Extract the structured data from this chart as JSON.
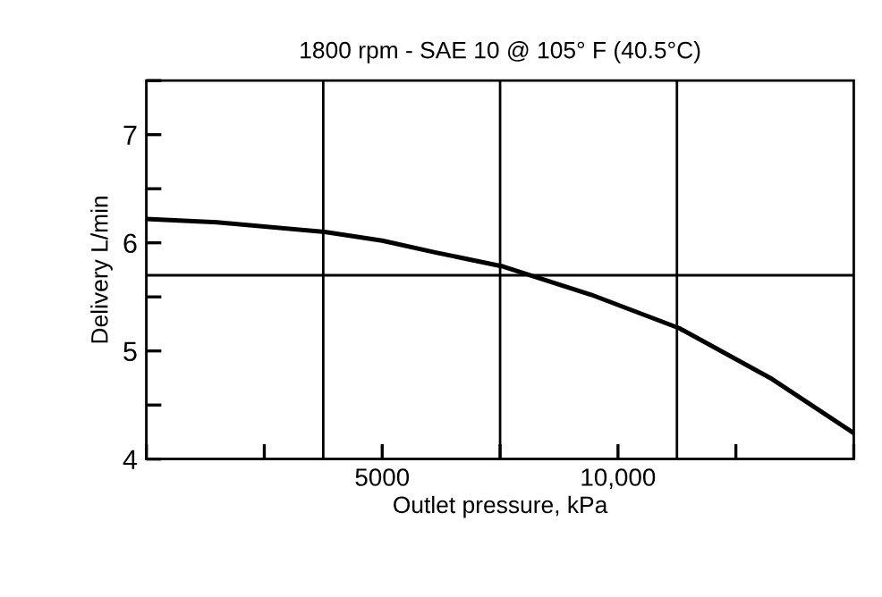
{
  "chart_data": {
    "type": "line",
    "title": "1800 rpm - SAE 10 @ 105° F (40.5°C)",
    "xlabel": "Outlet pressure, kPa",
    "ylabel": "Delivery L/min",
    "x": [
      0,
      1500,
      3780,
      5000,
      6140,
      7570,
      9430,
      11300,
      13230,
      15000
    ],
    "series": [
      {
        "color": "#000000",
        "values": [
          6.22,
          6.19,
          6.1,
          6.02,
          5.91,
          5.78,
          5.52,
          5.21,
          4.75,
          4.24
        ]
      }
    ],
    "xlim": [
      0,
      15000
    ],
    "ylim": [
      4,
      7.5
    ],
    "xticks": [
      {
        "value": 0,
        "label": null
      },
      {
        "value": 2500,
        "label": null
      },
      {
        "value": 5000,
        "label": "5000"
      },
      {
        "value": 7500,
        "label": null
      },
      {
        "value": 10000,
        "label": "10,000"
      },
      {
        "value": 12500,
        "label": null
      },
      {
        "value": 15000,
        "label": null
      }
    ],
    "yticks": [
      4,
      {
        "value": 4.5,
        "label": null
      },
      5,
      {
        "value": 5.5,
        "label": null
      },
      6,
      {
        "value": 6.5,
        "label": null
      },
      7,
      {
        "value": 7.5,
        "label": null
      }
    ],
    "ref_lines": [
      {
        "axis": "x",
        "value": 3750
      },
      {
        "axis": "x",
        "value": 7500
      },
      {
        "axis": "x",
        "value": 11250
      },
      {
        "axis": "y",
        "value": 5.7
      }
    ],
    "grid": false,
    "marker": "none",
    "line_style": "solid"
  }
}
